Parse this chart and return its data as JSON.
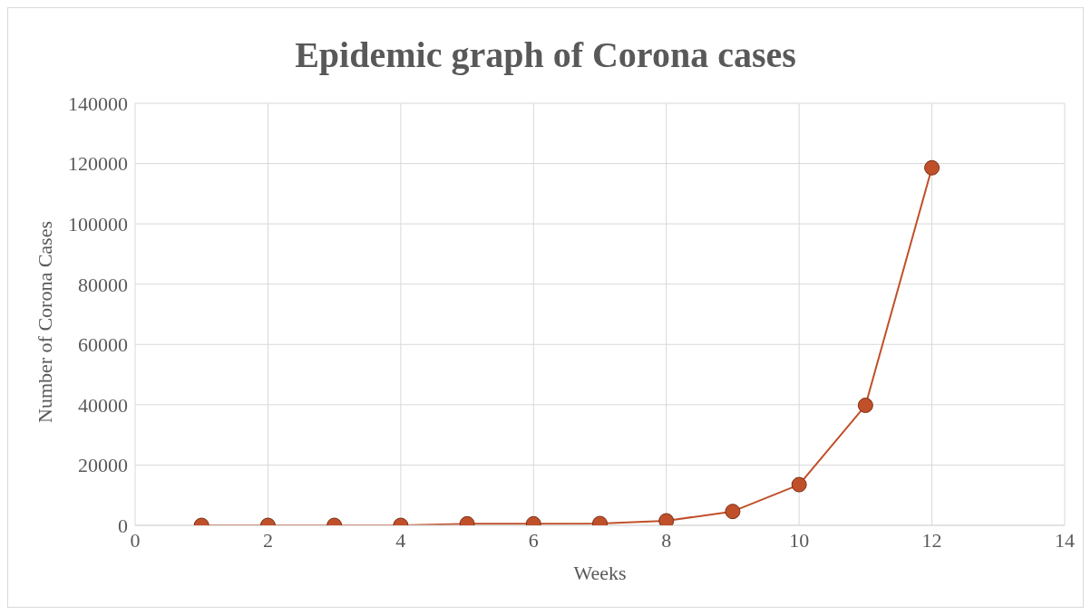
{
  "chart_data": {
    "type": "line",
    "title": "Epidemic graph of Corona cases",
    "xlabel": "Weeks",
    "ylabel": "Number of Corona Cases",
    "x": [
      1,
      2,
      3,
      4,
      5,
      6,
      7,
      8,
      9,
      10,
      11,
      12
    ],
    "series": [
      {
        "color": "#c0502a",
        "values": [
          0,
          0,
          0,
          0,
          500,
          500,
          600,
          1500,
          4600,
          13500,
          39800,
          118600
        ]
      }
    ],
    "xlim": [
      0,
      14
    ],
    "xticks": [
      0,
      2,
      4,
      6,
      8,
      10,
      12,
      14
    ],
    "ylim": [
      0,
      140000
    ],
    "yticks": [
      0,
      20000,
      40000,
      60000,
      80000,
      100000,
      120000,
      140000
    ],
    "grid": true,
    "marker": "circle",
    "line_style": "solid",
    "legend": false
  }
}
